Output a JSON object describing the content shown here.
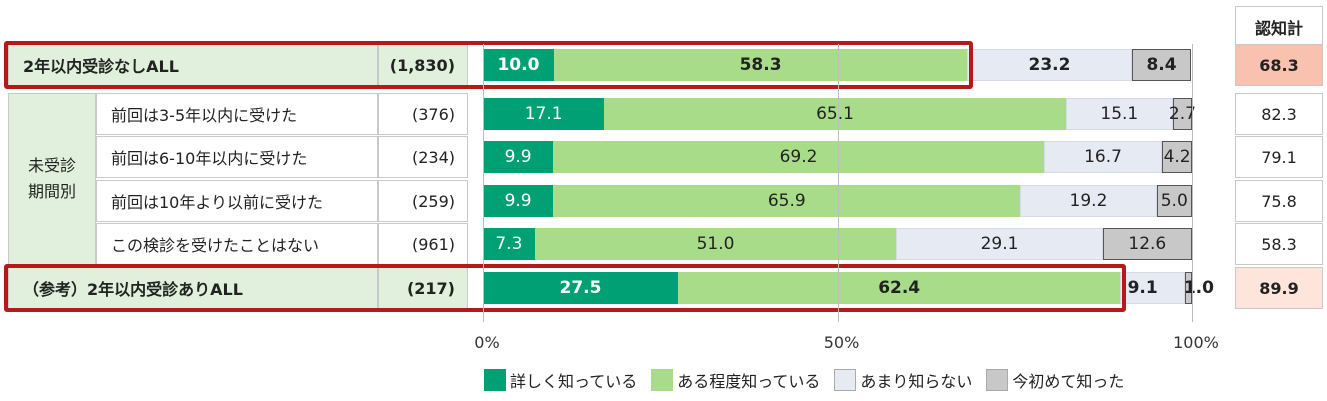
{
  "chart_data": {
    "type": "bar",
    "orientation": "horizontal",
    "stacked": true,
    "xlim": [
      0,
      100
    ],
    "x_ticks": [
      "0%",
      "50%",
      "100%"
    ],
    "awareness_header": "認知計",
    "group_label": "未受診\n期間別",
    "series": [
      {
        "name": "詳しく知っている",
        "color": "#00a075"
      },
      {
        "name": "ある程度知っている",
        "color": "#a8dc88"
      },
      {
        "name": "あまり知らない",
        "color": "#e6eaf2"
      },
      {
        "name": "今初めて知った",
        "color": "#c8c8c8"
      }
    ],
    "rows": [
      {
        "label": "2年以内受診なしALL",
        "n": "(1,830)",
        "values": [
          10.0,
          58.3,
          23.2,
          8.4
        ],
        "labels": [
          "10.0",
          "58.3",
          "23.2",
          "8.4"
        ],
        "awareness": "68.3",
        "highlight": true
      },
      {
        "label": "前回は3-5年以内に受けた",
        "n": "(376)",
        "values": [
          17.1,
          65.1,
          15.1,
          2.7
        ],
        "labels": [
          "17.1",
          "65.1",
          "15.1",
          "2.7"
        ],
        "awareness": "82.3",
        "highlight": false
      },
      {
        "label": "前回は6-10年以内に受けた",
        "n": "(234)",
        "values": [
          9.9,
          69.2,
          16.7,
          4.2
        ],
        "labels": [
          "9.9",
          "69.2",
          "16.7",
          "4.2"
        ],
        "awareness": "79.1",
        "highlight": false
      },
      {
        "label": "前回は10年より以前に受けた",
        "n": "(259)",
        "values": [
          9.9,
          65.9,
          19.2,
          5.0
        ],
        "labels": [
          "9.9",
          "65.9",
          "19.2",
          "5.0"
        ],
        "awareness": "75.8",
        "highlight": false
      },
      {
        "label": "この検診を受けたことはない",
        "n": "(961)",
        "values": [
          7.3,
          51.0,
          29.1,
          12.6
        ],
        "labels": [
          "7.3",
          "51.0",
          "29.1",
          "12.6"
        ],
        "awareness": "58.3",
        "highlight": false
      },
      {
        "label": "（参考）2年以内受診ありALL",
        "n": "(217)",
        "values": [
          27.5,
          62.4,
          9.1,
          1.0
        ],
        "labels": [
          "27.5",
          "62.4",
          "9.1",
          "1.0"
        ],
        "awareness": "89.9",
        "highlight": true
      }
    ]
  }
}
